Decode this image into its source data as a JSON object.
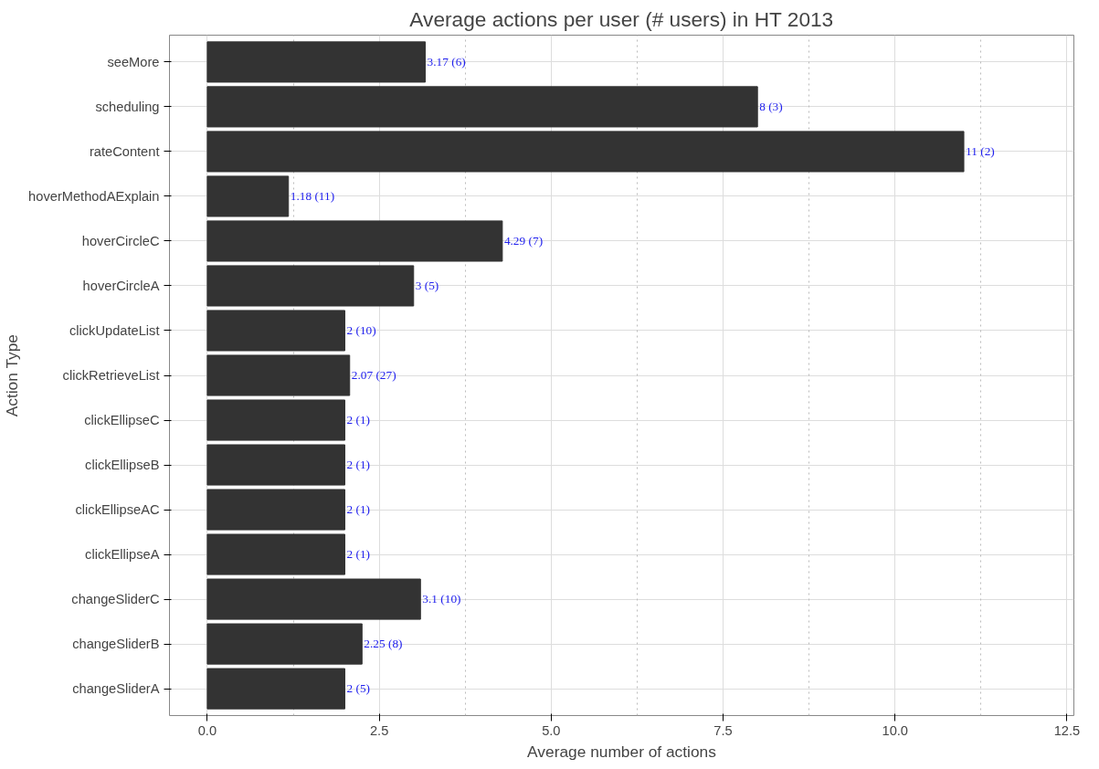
{
  "chart_data": {
    "type": "bar",
    "orientation": "horizontal",
    "title": "Average actions per user (# users) in HT 2013",
    "xlabel": "Average number of actions",
    "ylabel": "Action Type",
    "categories": [
      "seeMore",
      "scheduling",
      "rateContent",
      "hoverMethodAExplain",
      "hoverCircleC",
      "hoverCircleA",
      "clickUpdateList",
      "clickRetrieveList",
      "clickEllipseC",
      "clickEllipseB",
      "clickEllipseAC",
      "clickEllipseA",
      "changeSliderC",
      "changeSliderB",
      "changeSliderA"
    ],
    "values": [
      3.17,
      8,
      11,
      1.18,
      4.29,
      3,
      2,
      2.07,
      2,
      2,
      2,
      2,
      3.1,
      2.25,
      2
    ],
    "value_labels": [
      "3.17 (6)",
      "8 (3)",
      "11 (2)",
      "1.18 (11)",
      "4.29 (7)",
      "3 (5)",
      "2 (10)",
      "2.07 (27)",
      "2 (1)",
      "2 (1)",
      "2 (1)",
      "2 (1)",
      "3.1 (10)",
      "2.25 (8)",
      "2 (5)"
    ],
    "color": "#333333",
    "xlim": [
      -0.55,
      12.6
    ],
    "xticks": [
      {
        "value": 0,
        "label": "0.0"
      },
      {
        "value": 1.25,
        "label": null
      },
      {
        "value": 2.5,
        "label": "2.5"
      },
      {
        "value": 3.75,
        "label": null
      },
      {
        "value": 5,
        "label": "5.0"
      },
      {
        "value": 6.25,
        "label": null
      },
      {
        "value": 7.5,
        "label": "7.5"
      },
      {
        "value": 8.75,
        "label": null
      },
      {
        "value": 10,
        "label": "10.0"
      },
      {
        "value": 11.25,
        "label": null
      },
      {
        "value": 12.5,
        "label": "12.5"
      }
    ],
    "grid": true
  }
}
